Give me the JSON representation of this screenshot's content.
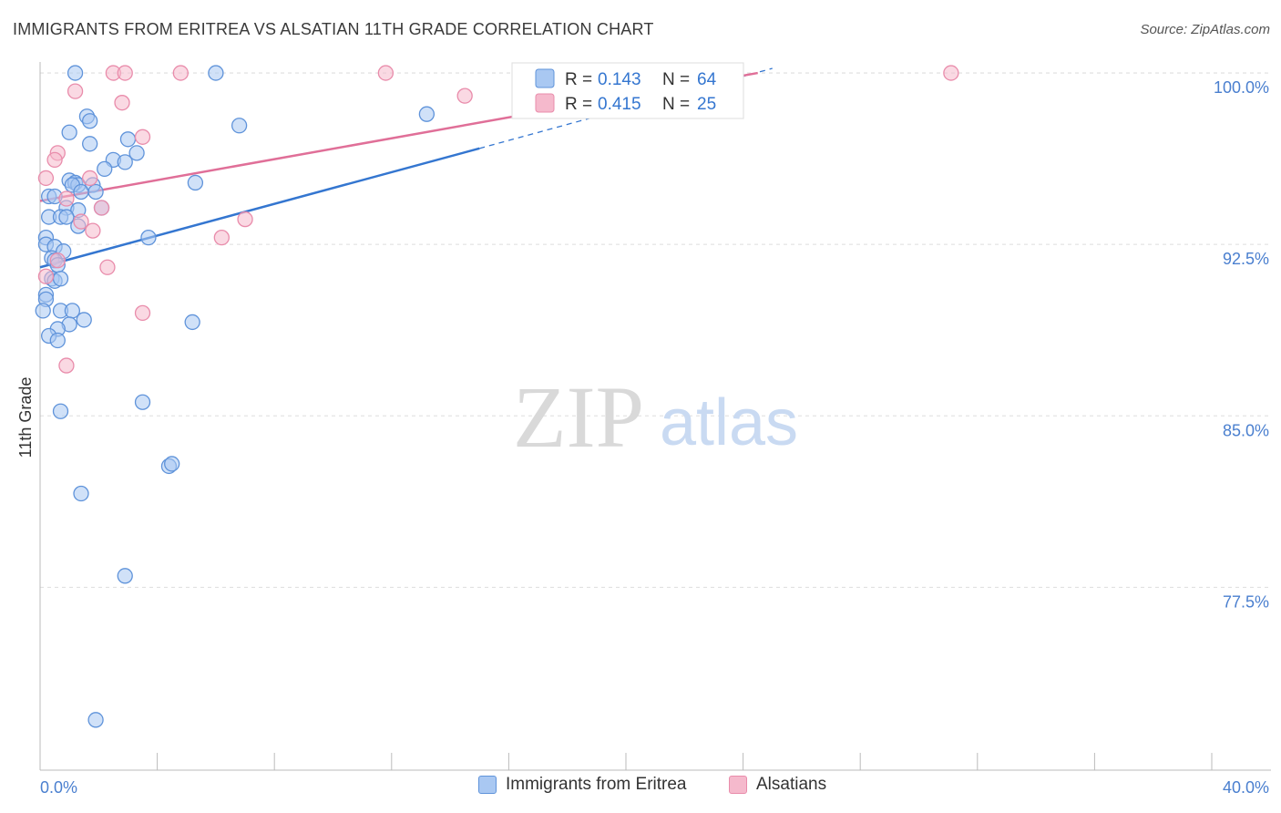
{
  "title": "IMMIGRANTS FROM ERITREA VS ALSATIAN 11TH GRADE CORRELATION CHART",
  "source": "Source: ZipAtlas.com",
  "watermark": {
    "zip": "ZIP",
    "atlas": "atlas"
  },
  "colors": {
    "blue_fill": "#a9c8f2",
    "blue_stroke": "#5f93da",
    "blue_line": "#3476d0",
    "pink_fill": "#f5b9cc",
    "pink_stroke": "#e98cab",
    "pink_line": "#e06f98",
    "tick_label": "#4a7fcf",
    "grid": "#dddddd"
  },
  "legend": {
    "rows": [
      {
        "r_label": "R =",
        "r_value": "0.143",
        "n_label": "N =",
        "n_value": "64",
        "series": "blue"
      },
      {
        "r_label": "R =",
        "r_value": "0.415",
        "n_label": "N =",
        "n_value": "25",
        "series": "pink"
      }
    ]
  },
  "bottom_legend": [
    "Immigrants from Eritrea",
    "Alsatians"
  ],
  "chart_data": {
    "type": "scatter",
    "title": "IMMIGRANTS FROM ERITREA VS ALSATIAN 11TH GRADE CORRELATION CHART",
    "xlabel": "",
    "ylabel": "11th Grade",
    "xlim": [
      0,
      40
    ],
    "ylim": [
      69.5,
      100.8
    ],
    "x_tick_labels": [
      "0.0%",
      "40.0%"
    ],
    "y_ticks": [
      77.5,
      85.0,
      92.5,
      100.0
    ],
    "y_tick_labels": [
      "77.5%",
      "85.0%",
      "92.5%",
      "100.0%"
    ],
    "grid": "horizontal dashed",
    "legend_position": "top-center",
    "series": [
      {
        "name": "Immigrants from Eritrea",
        "color": "blue",
        "R": 0.143,
        "N": 64,
        "trend": {
          "x": [
            0,
            15
          ],
          "y": [
            91.5,
            96.7
          ],
          "extended_to": [
            25,
            100.2
          ]
        },
        "points": [
          {
            "x": 1.2,
            "y": 100.0
          },
          {
            "x": 6.0,
            "y": 100.0
          },
          {
            "x": 1.6,
            "y": 98.1
          },
          {
            "x": 1.7,
            "y": 97.9
          },
          {
            "x": 6.8,
            "y": 97.7
          },
          {
            "x": 13.2,
            "y": 98.2
          },
          {
            "x": 1.0,
            "y": 97.4
          },
          {
            "x": 1.7,
            "y": 96.9
          },
          {
            "x": 3.0,
            "y": 97.1
          },
          {
            "x": 3.3,
            "y": 96.5
          },
          {
            "x": 2.5,
            "y": 96.2
          },
          {
            "x": 2.9,
            "y": 96.1
          },
          {
            "x": 2.2,
            "y": 95.8
          },
          {
            "x": 1.0,
            "y": 95.3
          },
          {
            "x": 1.2,
            "y": 95.2
          },
          {
            "x": 1.3,
            "y": 95.1
          },
          {
            "x": 1.1,
            "y": 95.1
          },
          {
            "x": 1.8,
            "y": 95.1
          },
          {
            "x": 5.3,
            "y": 95.2
          },
          {
            "x": 0.3,
            "y": 94.6
          },
          {
            "x": 0.5,
            "y": 94.6
          },
          {
            "x": 1.4,
            "y": 94.8
          },
          {
            "x": 1.9,
            "y": 94.8
          },
          {
            "x": 0.9,
            "y": 94.1
          },
          {
            "x": 1.3,
            "y": 94.0
          },
          {
            "x": 2.1,
            "y": 94.1
          },
          {
            "x": 0.3,
            "y": 93.7
          },
          {
            "x": 0.7,
            "y": 93.7
          },
          {
            "x": 0.9,
            "y": 93.7
          },
          {
            "x": 1.3,
            "y": 93.3
          },
          {
            "x": 3.7,
            "y": 92.8
          },
          {
            "x": 0.2,
            "y": 92.8
          },
          {
            "x": 0.2,
            "y": 92.5
          },
          {
            "x": 0.5,
            "y": 92.4
          },
          {
            "x": 0.8,
            "y": 92.2
          },
          {
            "x": 0.4,
            "y": 91.9
          },
          {
            "x": 0.5,
            "y": 91.8
          },
          {
            "x": 0.6,
            "y": 91.6
          },
          {
            "x": 0.4,
            "y": 91.0
          },
          {
            "x": 0.5,
            "y": 90.9
          },
          {
            "x": 0.7,
            "y": 91.0
          },
          {
            "x": 0.2,
            "y": 90.3
          },
          {
            "x": 0.2,
            "y": 90.1
          },
          {
            "x": 0.1,
            "y": 89.6
          },
          {
            "x": 0.7,
            "y": 89.6
          },
          {
            "x": 1.1,
            "y": 89.6
          },
          {
            "x": 1.0,
            "y": 89.0
          },
          {
            "x": 1.5,
            "y": 89.2
          },
          {
            "x": 5.2,
            "y": 89.1
          },
          {
            "x": 0.6,
            "y": 88.8
          },
          {
            "x": 0.3,
            "y": 88.5
          },
          {
            "x": 0.6,
            "y": 88.3
          },
          {
            "x": 0.7,
            "y": 85.2
          },
          {
            "x": 3.5,
            "y": 85.6
          },
          {
            "x": 4.4,
            "y": 82.8
          },
          {
            "x": 4.5,
            "y": 82.9
          },
          {
            "x": 1.4,
            "y": 81.6
          },
          {
            "x": 2.9,
            "y": 78.0
          },
          {
            "x": 1.9,
            "y": 71.7
          }
        ]
      },
      {
        "name": "Alsatians",
        "color": "pink",
        "R": 0.415,
        "N": 25,
        "trend": {
          "x": [
            0,
            24.5
          ],
          "y": [
            94.4,
            100.0
          ]
        },
        "points": [
          {
            "x": 2.5,
            "y": 100.0
          },
          {
            "x": 2.9,
            "y": 100.0
          },
          {
            "x": 4.8,
            "y": 100.0
          },
          {
            "x": 11.8,
            "y": 100.0
          },
          {
            "x": 31.1,
            "y": 100.0
          },
          {
            "x": 1.2,
            "y": 99.2
          },
          {
            "x": 2.8,
            "y": 98.7
          },
          {
            "x": 14.5,
            "y": 99.0
          },
          {
            "x": 3.5,
            "y": 97.2
          },
          {
            "x": 0.6,
            "y": 96.5
          },
          {
            "x": 0.5,
            "y": 96.2
          },
          {
            "x": 0.2,
            "y": 95.4
          },
          {
            "x": 1.7,
            "y": 95.4
          },
          {
            "x": 0.9,
            "y": 94.5
          },
          {
            "x": 2.1,
            "y": 94.1
          },
          {
            "x": 1.4,
            "y": 93.5
          },
          {
            "x": 1.8,
            "y": 93.1
          },
          {
            "x": 7.0,
            "y": 93.6
          },
          {
            "x": 6.2,
            "y": 92.8
          },
          {
            "x": 0.6,
            "y": 91.8
          },
          {
            "x": 2.3,
            "y": 91.5
          },
          {
            "x": 0.2,
            "y": 91.1
          },
          {
            "x": 3.5,
            "y": 89.5
          },
          {
            "x": 0.9,
            "y": 87.2
          }
        ]
      }
    ]
  }
}
